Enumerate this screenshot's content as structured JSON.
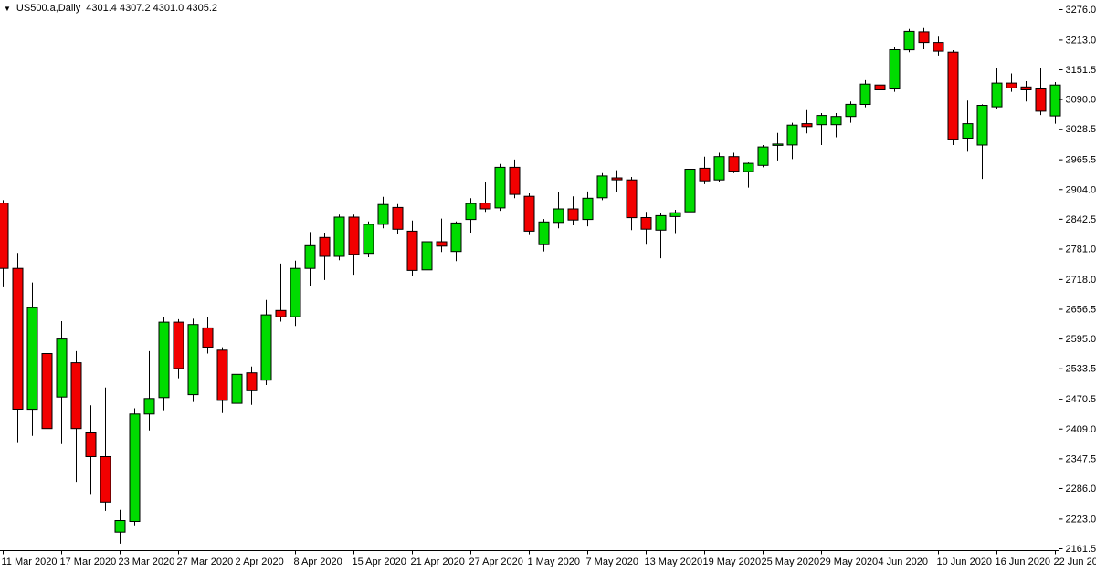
{
  "window": {
    "dropdown_icon": "▼",
    "title_symbol": "US500.a,Daily",
    "title_quote": "4301.4 4307.2 4301.0 4305.2"
  },
  "chart_data": {
    "type": "candlestick",
    "symbol": "US500.a",
    "timeframe": "Daily",
    "quote": {
      "open": 4301.4,
      "high": 4307.2,
      "low": 4301.0,
      "close": 4305.2
    },
    "colors": {
      "up": "#00DC00",
      "down": "#F20000",
      "outline": "#000000",
      "wick": "#000000",
      "background": "#FFFFFF",
      "axis": "#000000",
      "text": "#000000"
    },
    "y_axis": {
      "min": 2161.5,
      "max": 3276.0,
      "labels": [
        "3276.0",
        "3213.0",
        "3151.5",
        "3090.0",
        "3028.5",
        "2965.5",
        "2904.0",
        "2842.5",
        "2781.0",
        "2718.0",
        "2656.5",
        "2595.0",
        "2533.5",
        "2470.5",
        "2409.0",
        "2347.5",
        "2286.0",
        "2223.0",
        "2161.5"
      ]
    },
    "x_axis": {
      "tick_indices": [
        0,
        4,
        8,
        12,
        16,
        20,
        24,
        28,
        32,
        36,
        40,
        44,
        48,
        52,
        56,
        60,
        64,
        68,
        72
      ],
      "labels": [
        "11 Mar 2020",
        "17 Mar 2020",
        "23 Mar 2020",
        "27 Mar 2020",
        "2 Apr 2020",
        "8 Apr 2020",
        "15 Apr 2020",
        "21 Apr 2020",
        "27 Apr 2020",
        "1 May 2020",
        "7 May 2020",
        "13 May 2020",
        "19 May 2020",
        "25 May 2020",
        "29 May 2020",
        "4 Jun 2020",
        "10 Jun 2020",
        "16 Jun 2020",
        "22 Jun 2020"
      ]
    },
    "candles_columns": [
      "date",
      "open",
      "high",
      "low",
      "close"
    ],
    "candles": [
      [
        "11 Mar 2020",
        2876,
        2882,
        2702,
        2741
      ],
      [
        "12 Mar 2020",
        2741,
        2773,
        2380,
        2450
      ],
      [
        "13 Mar 2020",
        2450,
        2712,
        2395,
        2660
      ],
      [
        "16 Mar 2020",
        2565,
        2642,
        2350,
        2410
      ],
      [
        "17 Mar 2020",
        2475,
        2632,
        2378,
        2595
      ],
      [
        "18 Mar 2020",
        2546,
        2570,
        2300,
        2410
      ],
      [
        "19 Mar 2020",
        2401,
        2458,
        2273,
        2352
      ],
      [
        "20 Mar 2020",
        2352,
        2495,
        2240,
        2258
      ],
      [
        "23 Mar 2020",
        2196,
        2242,
        2172,
        2220
      ],
      [
        "24 Mar 2020",
        2218,
        2452,
        2208,
        2440
      ],
      [
        "25 Mar 2020",
        2440,
        2570,
        2406,
        2472
      ],
      [
        "26 Mar 2020",
        2474,
        2641,
        2448,
        2630
      ],
      [
        "27 Mar 2020",
        2630,
        2636,
        2514,
        2534
      ],
      [
        "30 Mar 2020",
        2480,
        2637,
        2465,
        2625
      ],
      [
        "31 Mar 2020",
        2618,
        2641,
        2565,
        2578
      ],
      [
        "1 Apr 2020",
        2572,
        2578,
        2442,
        2468
      ],
      [
        "2 Apr 2020",
        2462,
        2533,
        2447,
        2522
      ],
      [
        "3 Apr 2020",
        2525,
        2538,
        2459,
        2488
      ],
      [
        "6 Apr 2020",
        2510,
        2676,
        2500,
        2645
      ],
      [
        "7 Apr 2020",
        2654,
        2751,
        2631,
        2641
      ],
      [
        "8 Apr 2020",
        2641,
        2757,
        2622,
        2741
      ],
      [
        "9 Apr 2020",
        2741,
        2816,
        2704,
        2788
      ],
      [
        "13 Apr 2020",
        2805,
        2815,
        2717,
        2766
      ],
      [
        "14 Apr 2020",
        2766,
        2852,
        2758,
        2847
      ],
      [
        "15 Apr 2020",
        2847,
        2852,
        2728,
        2770
      ],
      [
        "16 Apr 2020",
        2772,
        2838,
        2764,
        2832
      ],
      [
        "17 Apr 2020",
        2832,
        2889,
        2824,
        2873
      ],
      [
        "20 Apr 2020",
        2867,
        2874,
        2812,
        2822
      ],
      [
        "21 Apr 2020",
        2818,
        2840,
        2726,
        2737
      ],
      [
        "22 Apr 2020",
        2738,
        2812,
        2722,
        2796
      ],
      [
        "23 Apr 2020",
        2796,
        2844,
        2775,
        2787
      ],
      [
        "24 Apr 2020",
        2776,
        2838,
        2756,
        2835
      ],
      [
        "27 Apr 2020",
        2842,
        2886,
        2815,
        2875
      ],
      [
        "28 Apr 2020",
        2876,
        2920,
        2858,
        2864
      ],
      [
        "29 Apr 2020",
        2866,
        2957,
        2860,
        2950
      ],
      [
        "30 Apr 2020",
        2950,
        2966,
        2886,
        2894
      ],
      [
        "1 May 2020",
        2890,
        2896,
        2810,
        2818
      ],
      [
        "4 May 2020",
        2790,
        2843,
        2776,
        2837
      ],
      [
        "5 May 2020",
        2836,
        2898,
        2824,
        2864
      ],
      [
        "6 May 2020",
        2864,
        2890,
        2830,
        2841
      ],
      [
        "7 May 2020",
        2842,
        2900,
        2828,
        2886
      ],
      [
        "8 May 2020",
        2887,
        2938,
        2882,
        2932
      ],
      [
        "11 May 2020",
        2928,
        2944,
        2898,
        2924
      ],
      [
        "12 May 2020",
        2924,
        2930,
        2820,
        2846
      ],
      [
        "13 May 2020",
        2846,
        2858,
        2790,
        2822
      ],
      [
        "14 May 2020",
        2820,
        2855,
        2762,
        2850
      ],
      [
        "15 May 2020",
        2848,
        2862,
        2814,
        2856
      ],
      [
        "18 May 2020",
        2858,
        2968,
        2852,
        2946
      ],
      [
        "19 May 2020",
        2948,
        2972,
        2915,
        2922
      ],
      [
        "20 May 2020",
        2924,
        2980,
        2920,
        2972
      ],
      [
        "21 May 2020",
        2972,
        2980,
        2938,
        2942
      ],
      [
        "22 May 2020",
        2941,
        2960,
        2908,
        2958
      ],
      [
        "25 May 2020",
        2954,
        2996,
        2950,
        2992
      ],
      [
        "26 May 2020",
        2996,
        3021,
        2964,
        2998
      ],
      [
        "27 May 2020",
        2996,
        3042,
        2967,
        3037
      ],
      [
        "28 May 2020",
        3040,
        3068,
        3020,
        3034
      ],
      [
        "29 May 2020",
        3038,
        3062,
        2996,
        3057
      ],
      [
        "1 Jun 2020",
        3038,
        3062,
        3012,
        3055
      ],
      [
        "2 Jun 2020",
        3055,
        3086,
        3042,
        3080
      ],
      [
        "3 Jun 2020",
        3080,
        3130,
        3074,
        3122
      ],
      [
        "4 Jun 2020",
        3120,
        3128,
        3090,
        3110
      ],
      [
        "5 Jun 2020",
        3112,
        3198,
        3106,
        3193
      ],
      [
        "8 Jun 2020",
        3193,
        3236,
        3188,
        3231
      ],
      [
        "9 Jun 2020",
        3230,
        3238,
        3194,
        3208
      ],
      [
        "10 Jun 2020",
        3208,
        3220,
        3181,
        3190
      ],
      [
        "11 Jun 2020",
        3188,
        3192,
        2996,
        3008
      ],
      [
        "12 Jun 2020",
        3010,
        3088,
        2982,
        3040
      ],
      [
        "15 Jun 2020",
        2996,
        3080,
        2926,
        3078
      ],
      [
        "16 Jun 2020",
        3075,
        3155,
        3070,
        3124
      ],
      [
        "17 Jun 2020",
        3124,
        3144,
        3106,
        3114
      ],
      [
        "18 Jun 2020",
        3116,
        3128,
        3086,
        3110
      ],
      [
        "19 Jun 2020",
        3112,
        3156,
        3058,
        3066
      ],
      [
        "22 Jun 2020",
        3056,
        3126,
        3040,
        3120
      ]
    ]
  }
}
